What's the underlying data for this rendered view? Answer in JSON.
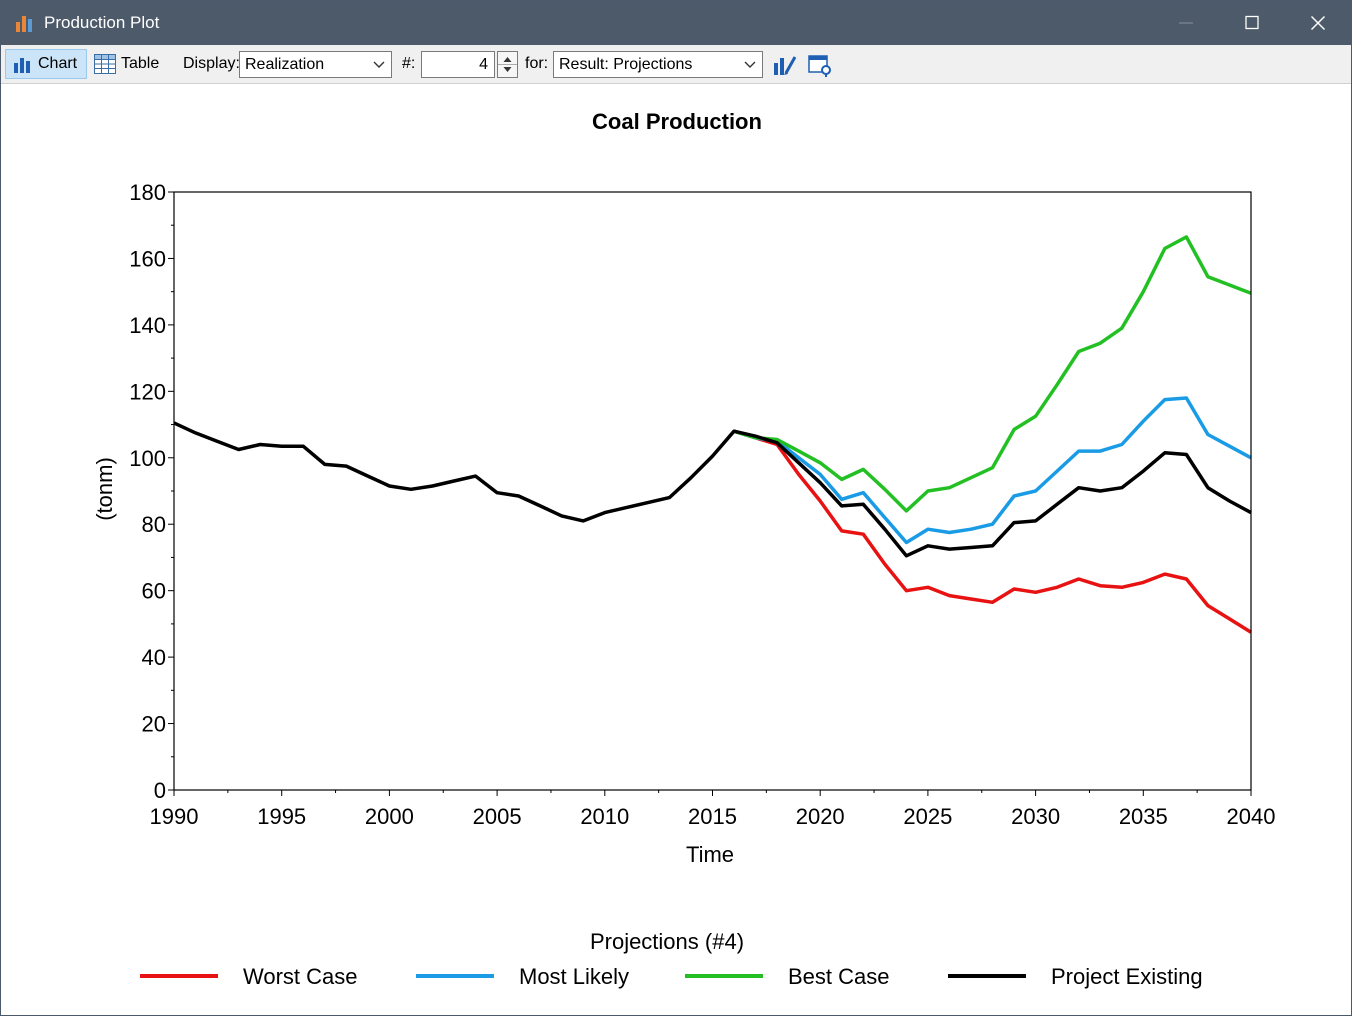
{
  "window": {
    "title": "Production Plot"
  },
  "toolbar": {
    "chart_label": "Chart",
    "table_label": "Table",
    "display_label": "Display:",
    "display_value": "Realization",
    "number_label": "#:",
    "number_value": "4",
    "for_label": "for:",
    "for_value": "Result: Projections"
  },
  "colors": {
    "titlebar": "#4d5a6a",
    "worst": "#e81212",
    "likely": "#1a9be6",
    "best": "#22c022",
    "existing": "#000000"
  },
  "chart_data": {
    "type": "line",
    "title": "Coal Production",
    "xlabel": "Time",
    "ylabel": "(tonm)",
    "xlim": [
      1990,
      2040
    ],
    "ylim": [
      0,
      180
    ],
    "xticks": [
      1990,
      1995,
      2000,
      2005,
      2010,
      2015,
      2020,
      2025,
      2030,
      2035,
      2040
    ],
    "yticks": [
      0,
      20,
      40,
      60,
      80,
      100,
      120,
      140,
      160,
      180
    ],
    "grid": false,
    "legend_title": "Projections (#4)",
    "legend_position": "bottom",
    "series": [
      {
        "name": "Worst Case",
        "color": "#e81212",
        "x": [
          2016,
          2017,
          2018,
          2019,
          2020,
          2021,
          2022,
          2023,
          2024,
          2025,
          2026,
          2027,
          2028,
          2029,
          2030,
          2031,
          2032,
          2033,
          2034,
          2035,
          2036,
          2037,
          2038,
          2039,
          2040
        ],
        "y": [
          108,
          106,
          104,
          95,
          87,
          78,
          77,
          68,
          60,
          61,
          58.5,
          57.5,
          56.5,
          60.5,
          59.5,
          61,
          63.5,
          61.5,
          61,
          62.5,
          65,
          63.5,
          55.5,
          51.5,
          47.5
        ]
      },
      {
        "name": "Most Likely",
        "color": "#1a9be6",
        "x": [
          2016,
          2017,
          2018,
          2019,
          2020,
          2021,
          2022,
          2023,
          2024,
          2025,
          2026,
          2027,
          2028,
          2029,
          2030,
          2031,
          2032,
          2033,
          2034,
          2035,
          2036,
          2037,
          2038,
          2039,
          2040
        ],
        "y": [
          108,
          106,
          105,
          100,
          95,
          87.5,
          89.5,
          82,
          74.5,
          78.5,
          77.5,
          78.5,
          80,
          88.5,
          90,
          96,
          102,
          102,
          104,
          111,
          117.5,
          118,
          107,
          103.5,
          100
        ]
      },
      {
        "name": "Best Case",
        "color": "#22c022",
        "x": [
          2016,
          2017,
          2018,
          2019,
          2020,
          2021,
          2022,
          2023,
          2024,
          2025,
          2026,
          2027,
          2028,
          2029,
          2030,
          2031,
          2032,
          2033,
          2034,
          2035,
          2036,
          2037,
          2038,
          2039,
          2040
        ],
        "y": [
          108,
          106,
          105.5,
          102,
          98.5,
          93.5,
          96.5,
          90.5,
          84,
          90,
          91,
          94,
          97,
          108.5,
          112.5,
          122,
          132,
          134.5,
          139,
          150,
          163,
          166.5,
          154.5,
          152,
          149.5
        ]
      },
      {
        "name": "Project Existing",
        "color": "#000000",
        "x": [
          1990,
          1991,
          1992,
          1993,
          1994,
          1995,
          1996,
          1997,
          1998,
          1999,
          2000,
          2001,
          2002,
          2003,
          2004,
          2005,
          2006,
          2007,
          2008,
          2009,
          2010,
          2011,
          2012,
          2013,
          2014,
          2015,
          2016,
          2017,
          2018,
          2019,
          2020,
          2021,
          2022,
          2023,
          2024,
          2025,
          2026,
          2027,
          2028,
          2029,
          2030,
          2031,
          2032,
          2033,
          2034,
          2035,
          2036,
          2037,
          2038,
          2039,
          2040
        ],
        "y": [
          110.5,
          107.5,
          105,
          102.5,
          104,
          103.5,
          103.5,
          98,
          97.5,
          94.5,
          91.5,
          90.5,
          91.5,
          93,
          94.5,
          89.5,
          88.5,
          85.5,
          82.5,
          81,
          83.5,
          85,
          86.5,
          88,
          94,
          100.5,
          108,
          106.5,
          104.5,
          98.5,
          92.5,
          85.5,
          86,
          78.5,
          70.5,
          73.5,
          72.5,
          73,
          73.5,
          80.5,
          81,
          86,
          91,
          90,
          91,
          96,
          101.5,
          101,
          91,
          87,
          83.5
        ]
      }
    ]
  }
}
